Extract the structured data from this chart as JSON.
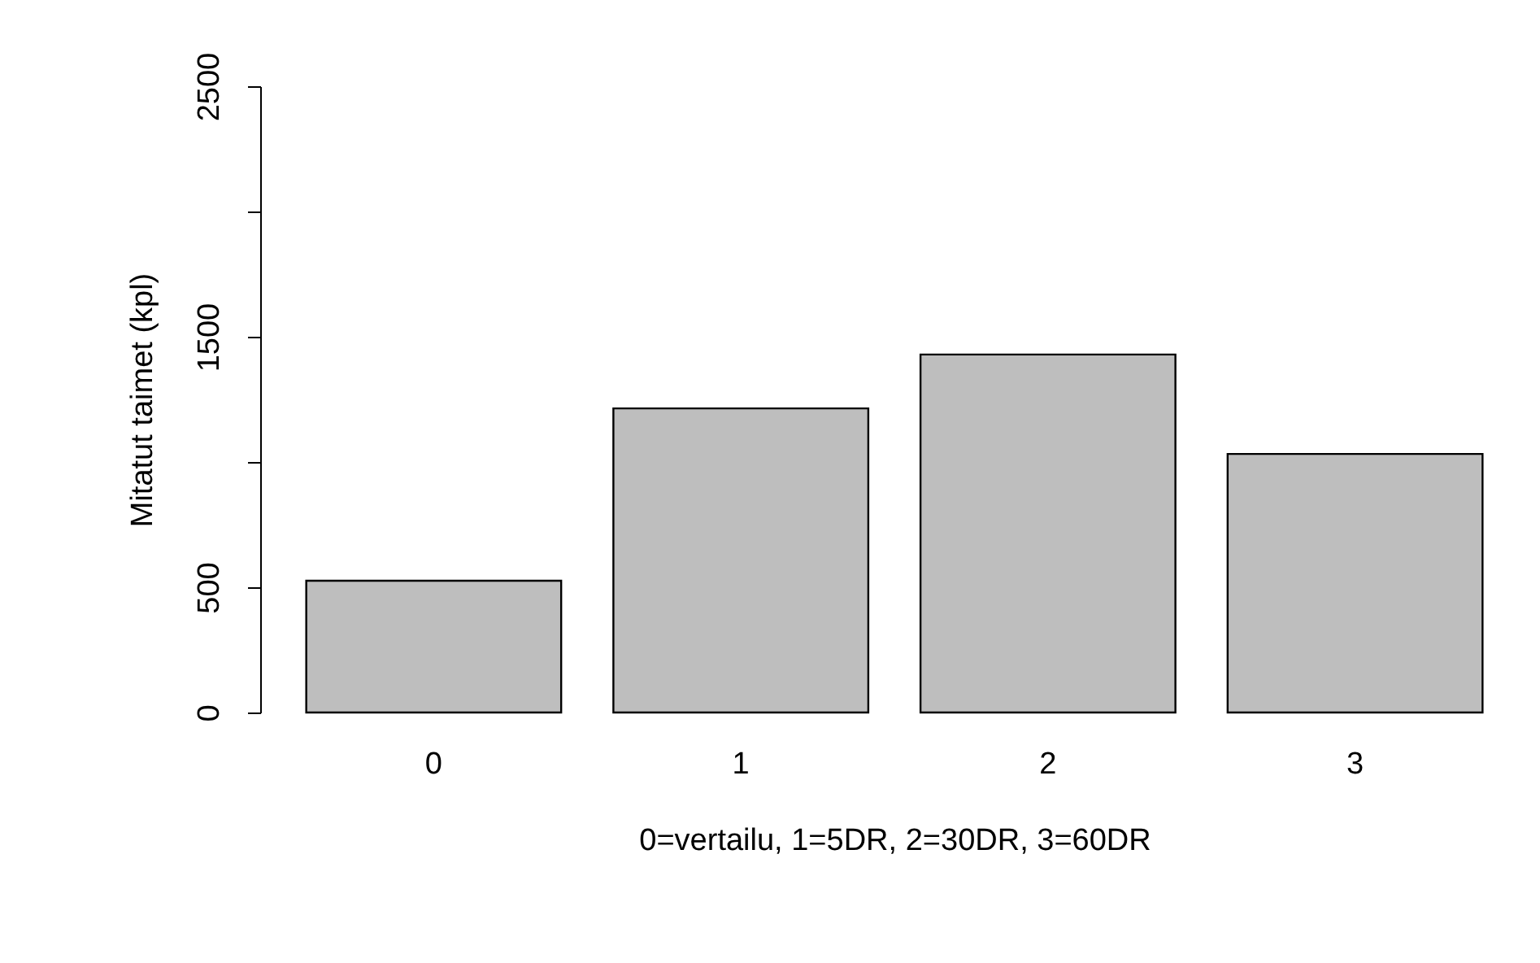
{
  "chart_data": {
    "type": "bar",
    "xlabel": "0=vertailu, 1=5DR, 2=30DR, 3=60DR",
    "ylabel": "Mitatut taimet (kpl)",
    "categories": [
      "0",
      "1",
      "2",
      "3"
    ],
    "values": [
      526,
      1214,
      1429,
      1032
    ],
    "color": "#bebebe",
    "ylim": [
      0,
      2500
    ],
    "yticks": [
      0,
      500,
      {
        "value": 1000,
        "label": null
      },
      1500,
      {
        "value": 2000,
        "label": null
      },
      2500
    ],
    "grid": false
  }
}
